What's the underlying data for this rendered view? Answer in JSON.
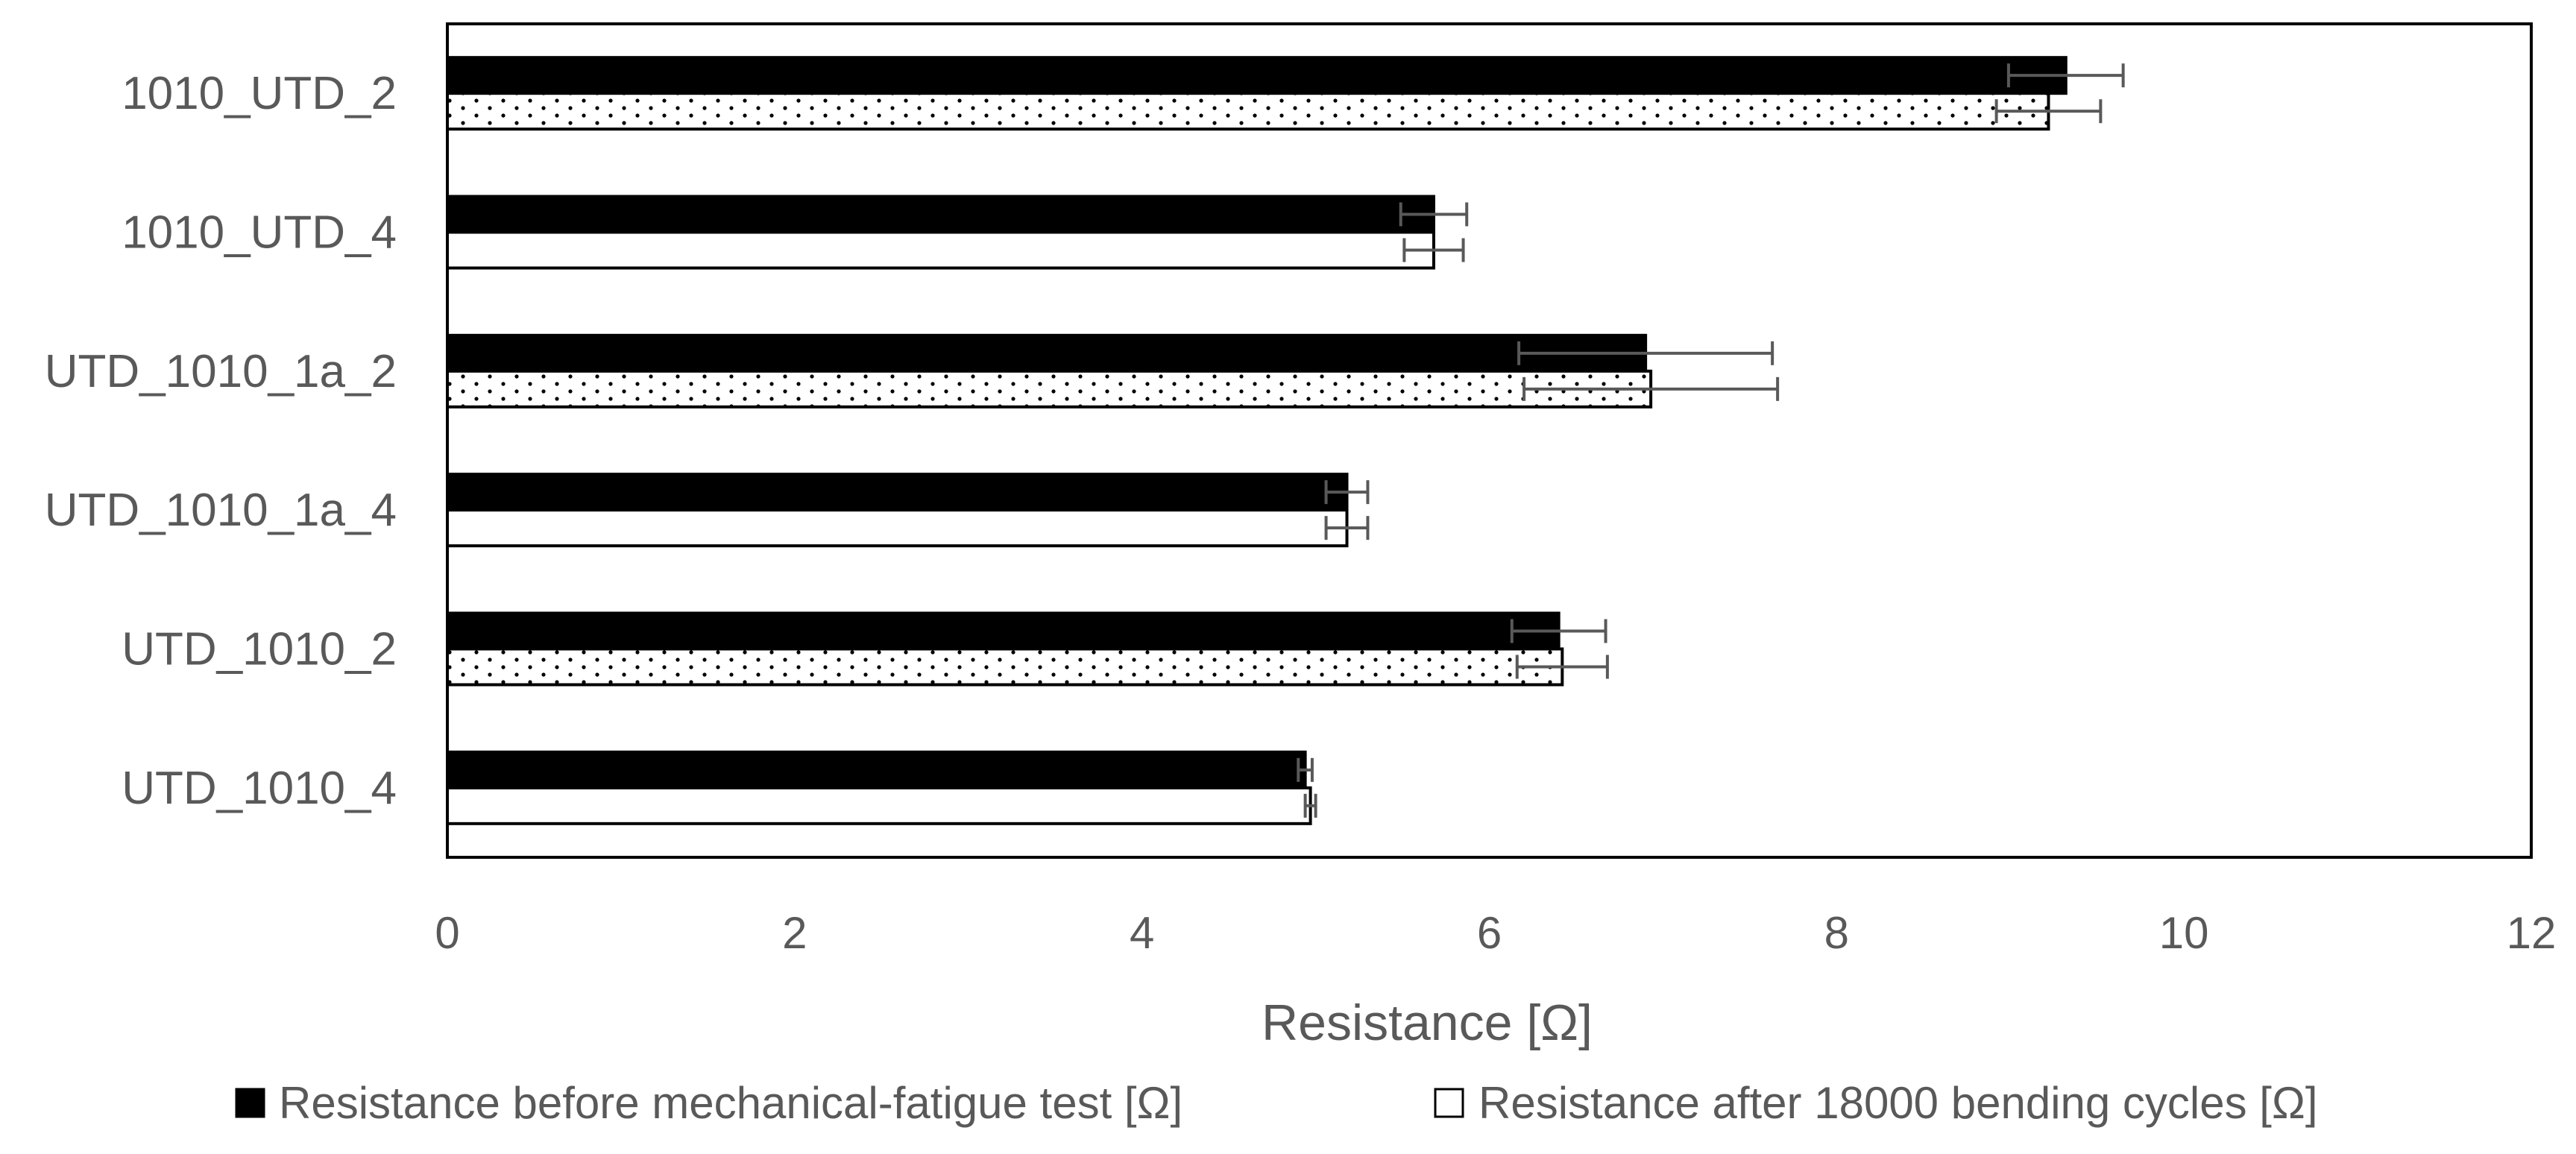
{
  "chart_data": {
    "type": "bar",
    "orientation": "horizontal",
    "categories": [
      "1010_UTD_2",
      "1010_UTD_4",
      "UTD_1010_1a_2",
      "UTD_1010_1a_4",
      "UTD_1010_2",
      "UTD_1010_4"
    ],
    "series": [
      {
        "name": "Resistance before mechanical-fatigue test [Ω]",
        "legend_label": "Resistance before mechanical-fatigue test [Ω]",
        "color": "#000000",
        "values": [
          9.32,
          5.68,
          6.9,
          5.18,
          6.4,
          4.94
        ],
        "error": [
          0.33,
          0.19,
          0.73,
          0.12,
          0.27,
          0.04
        ]
      },
      {
        "name": "Resistance after 18000 bending cycles [Ω]",
        "legend_label": "Resistance after 18000 bending cycles [Ω]",
        "color": "#ffffff",
        "values": [
          9.22,
          5.68,
          6.93,
          5.18,
          6.42,
          4.97
        ],
        "error": [
          0.3,
          0.17,
          0.73,
          0.12,
          0.26,
          0.03
        ]
      }
    ],
    "x_ticks": [
      "0",
      "2",
      "4",
      "6",
      "8",
      "10",
      "12"
    ],
    "xlim": [
      0,
      12
    ],
    "xlabel": "Resistance [Ω]",
    "title": "",
    "ylabel": "",
    "grid": false,
    "legend_position": "bottom"
  }
}
